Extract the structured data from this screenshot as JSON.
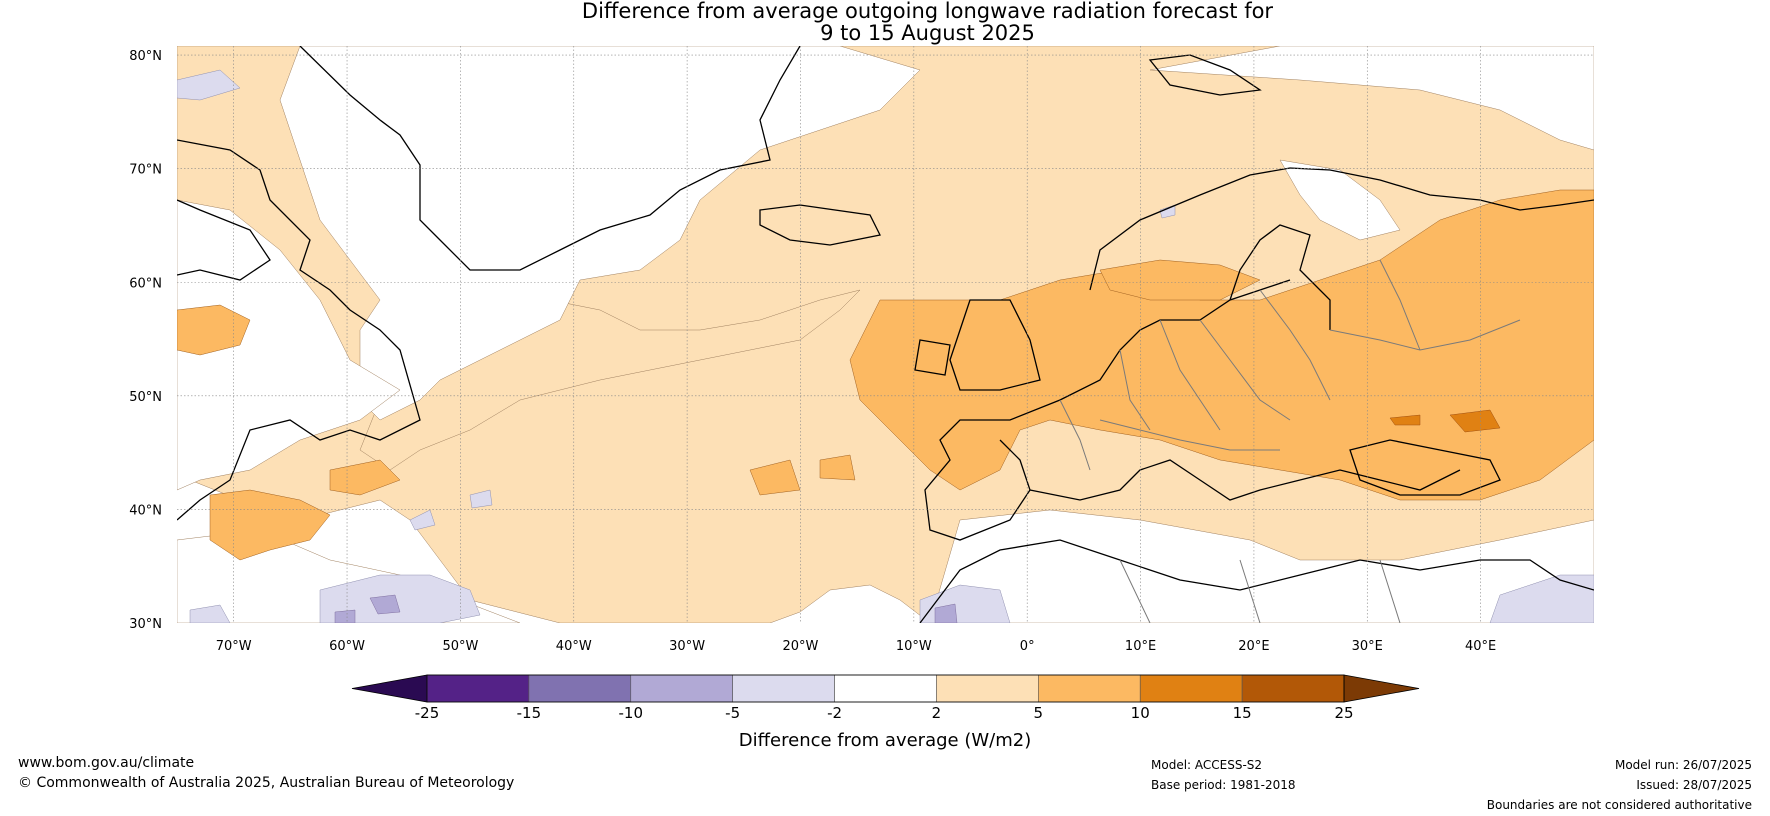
{
  "title": {
    "line1": "Difference from average outgoing longwave radiation forecast for",
    "line2": "9 to 15 August 2025"
  },
  "map": {
    "lon_range": [
      -75,
      50
    ],
    "lat_range": [
      30,
      80.8
    ],
    "lat_ticks": [
      "30°N",
      "40°N",
      "50°N",
      "60°N",
      "70°N",
      "80°N"
    ],
    "lon_ticks": [
      "70°W",
      "60°W",
      "50°W",
      "40°W",
      "30°W",
      "20°W",
      "10°W",
      "0°",
      "10°E",
      "20°E",
      "30°E",
      "40°E"
    ]
  },
  "legend": {
    "bounds": [
      "-25",
      "-15",
      "-10",
      "-5",
      "-2",
      "2",
      "5",
      "10",
      "15",
      "25"
    ],
    "colors": [
      "#2a0a52",
      "#542287",
      "#8072b0",
      "#b1a9d5",
      "#dcdbee",
      "#ffffff",
      "#fde0b6",
      "#fcb962",
      "#e08113",
      "#b25807",
      "#7c3a05"
    ],
    "label": "Difference from average (W/m2)"
  },
  "footer": {
    "website": "www.bom.gov.au/climate",
    "copyright": "© Commonwealth of Australia 2025, Australian Bureau of Meteorology",
    "model": "Model: ACCESS-S2",
    "base_period": "Base period: 1981-2018",
    "model_run": "Model run: 26/07/2025",
    "issued": "Issued: 28/07/2025",
    "boundaries": "Boundaries are not considered authoritative"
  }
}
